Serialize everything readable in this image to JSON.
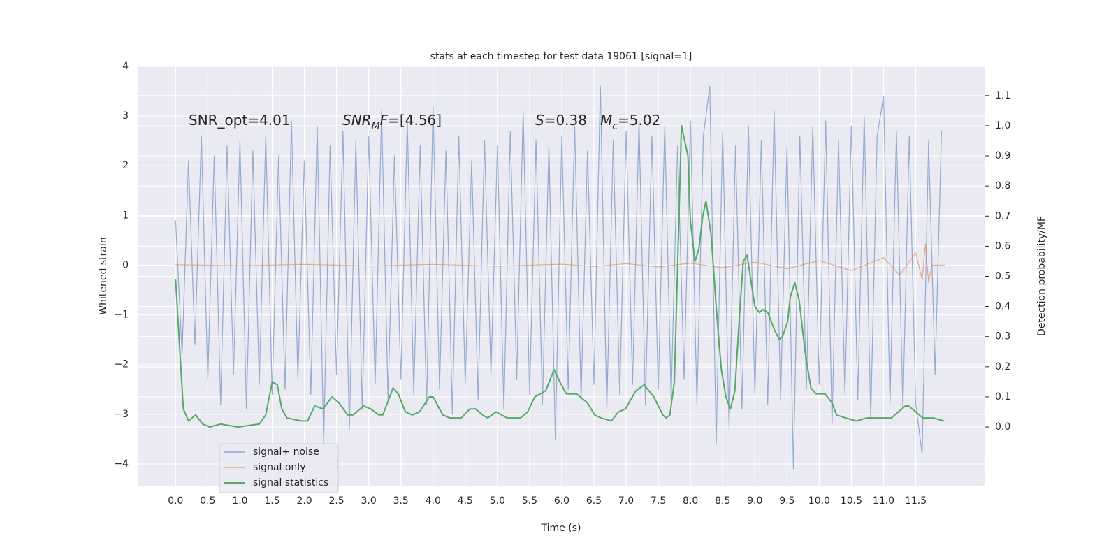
{
  "chart_data": {
    "type": "line",
    "title": "stats at each timestep for test data 19061 [signal=1]",
    "x_label": "Time (s)",
    "y_label": "Whitened strain",
    "y2_label": "Detection probability/MF",
    "grid": true,
    "legend": "lower left",
    "background": "#eaeaf2",
    "xlim": [
      -0.59,
      12.58
    ],
    "ylim": [
      -4.45,
      4.0
    ],
    "y2lim": [
      -0.197,
      1.197
    ],
    "xticks": [
      {
        "value": 0,
        "label": "0.0"
      },
      0.5,
      {
        "value": 1,
        "label": "1.0"
      },
      1.5,
      {
        "value": 2,
        "label": "2.0"
      },
      2.5,
      {
        "value": 3,
        "label": "3.0"
      },
      3.5,
      {
        "value": 4,
        "label": "4.0"
      },
      4.5,
      {
        "value": 5,
        "label": "5.0"
      },
      5.5,
      {
        "value": 6,
        "label": "6.0"
      },
      6.5,
      {
        "value": 7,
        "label": "7.0"
      },
      7.5,
      {
        "value": 8,
        "label": "8.0"
      },
      8.5,
      {
        "value": 9,
        "label": "9.0"
      },
      9.5,
      {
        "value": 10,
        "label": "10.0"
      },
      10.5,
      {
        "value": 11,
        "label": "11.0"
      },
      11.5
    ],
    "yticks": [
      {
        "value": -4,
        "label": "−4"
      },
      {
        "value": -3,
        "label": "−3"
      },
      {
        "value": -2,
        "label": "−2"
      },
      {
        "value": -1,
        "label": "−1"
      },
      0,
      1,
      2,
      3,
      4
    ],
    "y2ticks": [
      {
        "value": 0,
        "label": "0.0"
      },
      0.1,
      0.2,
      0.3,
      0.4,
      0.5,
      0.6,
      0.7,
      0.8,
      0.9,
      {
        "value": 1,
        "label": "1.0"
      },
      1.1
    ],
    "annotations": [
      {
        "parts": [
          {
            "text": "SNR_opt=4.01"
          }
        ]
      },
      {
        "parts": [
          {
            "text": "SNR",
            "italic": true
          },
          {
            "text": "M",
            "italic": true,
            "sub": true
          },
          {
            "text": "F",
            "italic": true
          },
          {
            "text": "=[4.56]"
          }
        ]
      },
      {
        "parts": [
          {
            "text": "S",
            "italic": true
          },
          {
            "text": "=0.38   "
          },
          {
            "text": "M",
            "italic": true
          },
          {
            "text": "c",
            "italic": true,
            "sub": true
          },
          {
            "text": "=5.02"
          }
        ]
      }
    ],
    "series": [
      {
        "name": "signal+ noise",
        "color": "#4c72b0",
        "opacity": 0.55,
        "x": [
          0,
          0.1,
          0.2,
          0.3,
          0.4,
          0.5,
          0.6,
          0.7,
          0.8,
          0.9,
          1,
          1.1,
          1.2,
          1.3,
          1.4,
          1.5,
          1.6,
          1.7,
          1.8,
          1.9,
          2,
          2.1,
          2.2,
          2.3,
          2.4,
          2.5,
          2.6,
          2.7,
          2.8,
          2.9,
          3,
          3.1,
          3.2,
          3.3,
          3.4,
          3.5,
          3.6,
          3.7,
          3.8,
          3.9,
          4,
          4.1,
          4.2,
          4.3,
          4.4,
          4.5,
          4.6,
          4.7,
          4.8,
          4.9,
          5,
          5.1,
          5.2,
          5.3,
          5.4,
          5.5,
          5.6,
          5.7,
          5.8,
          5.9,
          6,
          6.1,
          6.2,
          6.3,
          6.4,
          6.5,
          6.6,
          6.7,
          6.8,
          6.9,
          7,
          7.1,
          7.2,
          7.3,
          7.4,
          7.5,
          7.6,
          7.7,
          7.8,
          7.9,
          8,
          8.1,
          8.2,
          8.3,
          8.4,
          8.5,
          8.6,
          8.7,
          8.8,
          8.9,
          9,
          9.1,
          9.2,
          9.3,
          9.4,
          9.5,
          9.6,
          9.7,
          9.8,
          9.9,
          10,
          10.1,
          10.2,
          10.3,
          10.4,
          10.5,
          10.6,
          10.7,
          10.8,
          10.9,
          11,
          11.1,
          11.2,
          11.3,
          11.4,
          11.5,
          11.6,
          11.7,
          11.8,
          11.9
        ],
        "values": [
          0.9,
          -1.8,
          2.1,
          -1.6,
          2.6,
          -2.3,
          2.2,
          -2.8,
          2.4,
          -2.2,
          2.5,
          -2.9,
          2.3,
          -2.4,
          2.6,
          -2.6,
          2.2,
          -2.5,
          2.9,
          -2.3,
          2.1,
          -2.6,
          2.8,
          -3.6,
          2.4,
          -2.2,
          2.7,
          -3.3,
          2.5,
          -2.9,
          2.6,
          -2.4,
          3.1,
          -2.7,
          2.2,
          -2.3,
          2.9,
          -2.6,
          2.4,
          -2.8,
          3.2,
          -2.5,
          2.3,
          -3.0,
          2.6,
          -2.4,
          2.1,
          -2.7,
          2.5,
          -2.2,
          2.4,
          -2.9,
          2.7,
          -2.3,
          3.1,
          -2.6,
          2.5,
          -2.8,
          2.4,
          -3.5,
          2.6,
          -2.5,
          2.8,
          -2.7,
          2.3,
          -2.4,
          3.6,
          -2.9,
          2.5,
          -2.6,
          2.7,
          -2.4,
          2.9,
          -2.8,
          2.6,
          -2.5,
          2.8,
          -2.7,
          2.4,
          -2.3,
          2.9,
          -2.8,
          2.6,
          3.6,
          -3.6,
          2.7,
          -3.3,
          2.4,
          -2.9,
          2.8,
          -2.6,
          2.5,
          -2.8,
          3.1,
          -2.7,
          2.4,
          -4.1,
          2.6,
          -2.5,
          2.8,
          -2.4,
          2.9,
          -3.2,
          2.5,
          -2.6,
          2.8,
          -2.7,
          3.0,
          -3.1,
          2.6,
          3.4,
          -2.8,
          2.7,
          -2.9,
          2.6,
          -2.8,
          -3.8,
          2.5,
          -2.2,
          2.7
        ]
      },
      {
        "name": "signal only",
        "color": "#dd8452",
        "opacity": 0.65,
        "x": [
          0,
          1,
          2,
          3,
          4,
          5,
          6,
          6.5,
          7,
          7.5,
          8,
          8.5,
          9,
          9.5,
          10,
          10.5,
          11,
          11.25,
          11.5,
          11.6,
          11.65,
          11.7,
          11.75,
          11.95
        ],
        "values": [
          0.01,
          -0.01,
          0.015,
          -0.015,
          0.015,
          -0.02,
          0.02,
          -0.025,
          0.03,
          -0.035,
          0.04,
          -0.05,
          0.06,
          -0.07,
          0.09,
          -0.11,
          0.15,
          -0.2,
          0.25,
          -0.3,
          0.42,
          -0.35,
          0,
          0
        ]
      },
      {
        "name": "signal statistics",
        "color": "#55a868",
        "opacity": 1,
        "axis": "y2",
        "x": [
          0,
          0.12,
          0.2,
          0.31,
          0.42,
          0.53,
          0.7,
          0.97,
          1.3,
          1.4,
          1.5,
          1.58,
          1.65,
          1.73,
          1.95,
          2.05,
          2.16,
          2.29,
          2.43,
          2.54,
          2.67,
          2.76,
          2.92,
          3.03,
          3.16,
          3.22,
          3.38,
          3.46,
          3.57,
          3.68,
          3.79,
          3.94,
          4.0,
          4.15,
          4.26,
          4.44,
          4.57,
          4.66,
          4.77,
          4.85,
          4.98,
          5.15,
          5.36,
          5.47,
          5.58,
          5.75,
          5.88,
          5.97,
          6.07,
          6.23,
          6.4,
          6.51,
          6.61,
          6.77,
          6.88,
          6.99,
          7.15,
          7.28,
          7.43,
          7.57,
          7.62,
          7.68,
          7.75,
          7.86,
          7.96,
          8.0,
          8.07,
          8.13,
          8.19,
          8.24,
          8.32,
          8.41,
          8.48,
          8.55,
          8.62,
          8.69,
          8.75,
          8.82,
          8.88,
          8.95,
          9.0,
          9.07,
          9.13,
          9.2,
          9.31,
          9.38,
          9.43,
          9.51,
          9.55,
          9.62,
          9.69,
          9.78,
          9.87,
          9.95,
          10.09,
          10.2,
          10.27,
          10.41,
          10.58,
          10.74,
          10.96,
          11.12,
          11.23,
          11.34,
          11.39,
          11.5,
          11.61,
          11.77,
          11.94
        ],
        "values": [
          0.49,
          0.06,
          0.02,
          0.04,
          0.01,
          0.0,
          0.01,
          0.0,
          0.01,
          0.04,
          0.15,
          0.14,
          0.06,
          0.03,
          0.02,
          0.02,
          0.07,
          0.06,
          0.1,
          0.08,
          0.04,
          0.04,
          0.07,
          0.06,
          0.04,
          0.04,
          0.13,
          0.11,
          0.05,
          0.04,
          0.05,
          0.1,
          0.1,
          0.04,
          0.03,
          0.03,
          0.06,
          0.06,
          0.04,
          0.03,
          0.05,
          0.03,
          0.03,
          0.05,
          0.1,
          0.12,
          0.19,
          0.15,
          0.11,
          0.11,
          0.08,
          0.04,
          0.03,
          0.02,
          0.05,
          0.06,
          0.12,
          0.14,
          0.1,
          0.04,
          0.03,
          0.04,
          0.15,
          1.0,
          0.9,
          0.68,
          0.55,
          0.59,
          0.7,
          0.75,
          0.64,
          0.37,
          0.19,
          0.1,
          0.06,
          0.12,
          0.33,
          0.55,
          0.57,
          0.47,
          0.4,
          0.38,
          0.39,
          0.38,
          0.32,
          0.29,
          0.3,
          0.35,
          0.43,
          0.48,
          0.42,
          0.25,
          0.13,
          0.11,
          0.11,
          0.08,
          0.04,
          0.03,
          0.02,
          0.03,
          0.03,
          0.03,
          0.05,
          0.07,
          0.07,
          0.05,
          0.03,
          0.03,
          0.02
        ]
      }
    ]
  }
}
